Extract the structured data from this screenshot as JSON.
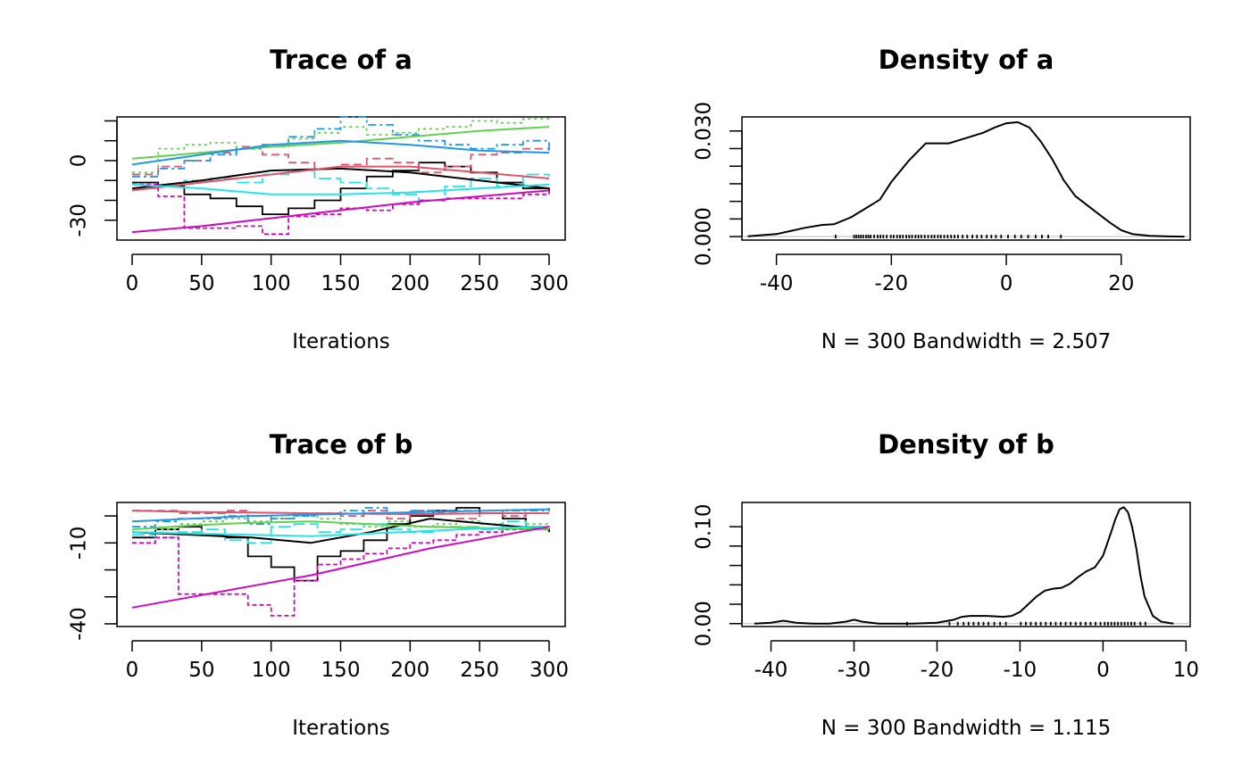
{
  "chart_data": [
    {
      "type": "line",
      "title": "Trace of a",
      "xlabel": "Iterations",
      "ylabel": "",
      "xlim": [
        0,
        300
      ],
      "ylim": [
        -40,
        22
      ],
      "x_ticks": [
        "0",
        "50",
        "100",
        "150",
        "200",
        "250",
        "300"
      ],
      "y_ticks": [
        "-30",
        "0"
      ],
      "y_tick_values": [
        -30,
        0
      ],
      "y_minor_ticks": [
        -30,
        -20,
        -10,
        0,
        10,
        20
      ],
      "series_colors": [
        "#000000",
        "#DF536B",
        "#61D04F",
        "#2297E6",
        "#28E2E5",
        "#CD0BBC"
      ],
      "series": [
        {
          "values": [
            -11,
            -13,
            -17,
            -19,
            -23,
            -27,
            -24,
            -20,
            -14,
            -8,
            -5,
            -1,
            -3,
            -6,
            -11,
            -14,
            -16
          ]
        },
        {
          "values": [
            -7,
            -3,
            0,
            4,
            7,
            3,
            -1,
            -4,
            -2,
            1,
            -1,
            -6,
            -3,
            3,
            4,
            6,
            5
          ]
        },
        {
          "values": [
            -6,
            6,
            8,
            9,
            6,
            7,
            11,
            14,
            17,
            13,
            14,
            16,
            17,
            20,
            19,
            21,
            20
          ]
        },
        {
          "values": [
            -8,
            -4,
            0,
            3,
            6,
            8,
            12,
            16,
            22,
            18,
            13,
            10,
            8,
            6,
            8,
            10,
            5
          ]
        },
        {
          "values": [
            -14,
            -12,
            -10,
            -9,
            -11,
            -7,
            -5,
            -9,
            -11,
            -14,
            -17,
            -20,
            -13,
            -9,
            -13,
            -7,
            -8
          ]
        },
        {
          "values": [
            -12,
            -18,
            -34,
            -34,
            -33,
            -37,
            -28,
            -27,
            -24,
            -25,
            -22,
            -20,
            -19,
            -19,
            -19,
            -17,
            -15
          ]
        }
      ],
      "trend_lines": [
        {
          "values": [
            -14,
            -10,
            -5,
            -4,
            -6,
            -10,
            -14
          ]
        },
        {
          "values": [
            -15,
            -11,
            -7,
            -3,
            -3,
            -6,
            -9
          ]
        },
        {
          "values": [
            1,
            4,
            7,
            9,
            12,
            15,
            17
          ]
        },
        {
          "values": [
            -2,
            3,
            8,
            10,
            8,
            5,
            4
          ]
        },
        {
          "values": [
            -12,
            -14,
            -17,
            -17,
            -16,
            -14,
            -12
          ]
        },
        {
          "values": [
            -36,
            -33,
            -29,
            -25,
            -21,
            -18,
            -15
          ]
        }
      ]
    },
    {
      "type": "line",
      "title": "Density of a",
      "xlabel": "N = 300   Bandwidth = 2.507",
      "ylabel": "",
      "xlim": [
        -46,
        32
      ],
      "ylim": [
        -0.001,
        0.034
      ],
      "x_ticks": [
        "-40",
        "-20",
        "0",
        "20"
      ],
      "x_tick_values": [
        -40,
        -20,
        0,
        20
      ],
      "y_ticks": [
        "0.000",
        "0.030"
      ],
      "y_tick_values": [
        0,
        0.03
      ],
      "y_minor_ticks": [
        0,
        0.005,
        0.01,
        0.015,
        0.02,
        0.025,
        0.03
      ],
      "x": [
        -45,
        -40,
        -35,
        -32,
        -30,
        -27,
        -25,
        -22,
        -20,
        -17,
        -14,
        -12,
        -10,
        -7,
        -4,
        -2,
        0,
        2,
        4,
        6,
        8,
        10,
        12,
        14,
        16,
        18,
        20,
        22,
        25,
        28,
        31
      ],
      "y": [
        0.0001,
        0.0007,
        0.0025,
        0.0033,
        0.0035,
        0.0055,
        0.0075,
        0.0105,
        0.0155,
        0.0215,
        0.0265,
        0.0265,
        0.0265,
        0.028,
        0.0295,
        0.031,
        0.0322,
        0.0325,
        0.031,
        0.027,
        0.022,
        0.016,
        0.0115,
        0.009,
        0.0065,
        0.004,
        0.0018,
        0.0007,
        0.0002,
        5e-05,
        0
      ],
      "rug": [
        -29.7,
        -26.5,
        -26.1,
        -25.7,
        -25.3,
        -24.9,
        -24.4,
        -24,
        -23.6,
        -23,
        -22.4,
        -21.9,
        -21.4,
        -20.8,
        -20.1,
        -19.6,
        -19,
        -18.5,
        -18,
        -17.4,
        -16.9,
        -16.4,
        -15.8,
        -15.3,
        -14.8,
        -14.2,
        -13.6,
        -13,
        -12.5,
        -11.9,
        -11.4,
        -10.8,
        -10.2,
        -9.6,
        -9,
        -8.4,
        -7.6,
        -6.8,
        -5.9,
        -5.1,
        -4.3,
        -3.4,
        -2.6,
        -1.8,
        -0.9,
        0.3,
        1.5,
        2.6,
        3.8,
        5.1,
        6.2,
        7.3,
        9.5
      ]
    },
    {
      "type": "line",
      "title": "Trace of b",
      "xlabel": "Iterations",
      "ylabel": "",
      "xlim": [
        0,
        300
      ],
      "ylim": [
        -41,
        5
      ],
      "x_ticks": [
        "0",
        "50",
        "100",
        "150",
        "200",
        "250",
        "300"
      ],
      "y_ticks": [
        "-40",
        "-10"
      ],
      "y_tick_values": [
        -40,
        -10
      ],
      "y_minor_ticks": [
        -40,
        -30,
        -20,
        -10,
        0
      ],
      "series_colors": [
        "#000000",
        "#DF536B",
        "#61D04F",
        "#2297E6",
        "#28E2E5",
        "#CD0BBC"
      ],
      "series": [
        {
          "values": [
            -8,
            -5,
            -4,
            -7,
            -8,
            -15,
            -19,
            -24,
            -15,
            -13,
            -9,
            -3,
            0,
            2,
            3,
            1,
            -1,
            -5,
            -6
          ]
        },
        {
          "values": [
            2,
            2,
            1,
            1,
            2,
            0,
            -1,
            1,
            1,
            0,
            2,
            -1,
            2,
            1,
            -1,
            1,
            0,
            1,
            1
          ]
        },
        {
          "values": [
            -6,
            -5,
            -3,
            -2,
            -1,
            -2,
            -1,
            0,
            -1,
            -3,
            -4,
            -2,
            -4,
            -3,
            -2,
            -3,
            -5,
            -3,
            -2
          ]
        },
        {
          "values": [
            -4,
            -2,
            -1,
            -1,
            0,
            -3,
            -1,
            0,
            1,
            2,
            3,
            1,
            2,
            2,
            2,
            1,
            2,
            2,
            3
          ]
        },
        {
          "values": [
            -7,
            -8,
            -6,
            -5,
            -9,
            -10,
            -4,
            -3,
            -6,
            -5,
            -3,
            -5,
            -6,
            -4,
            -4,
            -5,
            -2,
            -4,
            -3
          ]
        },
        {
          "values": [
            -10,
            -8,
            -29,
            -29,
            -29,
            -33,
            -37,
            -24,
            -18,
            -16,
            -14,
            -12,
            -10,
            -9,
            -7,
            -6,
            -5,
            -4,
            -3
          ]
        }
      ],
      "trend_lines": [
        {
          "values": [
            -6,
            -7,
            -8,
            -10,
            -6,
            -1,
            -3,
            -5
          ]
        },
        {
          "values": [
            2,
            1.5,
            1.3,
            1,
            0.8,
            0.7,
            1,
            1
          ]
        },
        {
          "values": [
            -5,
            -3.5,
            -2.5,
            -2,
            -3,
            -4,
            -4.5,
            -5
          ]
        },
        {
          "values": [
            -2,
            -1,
            0,
            0.5,
            1,
            1.5,
            2,
            2.5
          ]
        },
        {
          "values": [
            -6,
            -6.5,
            -7,
            -7.5,
            -6.5,
            -5.5,
            -4.5,
            -4
          ]
        },
        {
          "values": [
            -34,
            -30,
            -26,
            -22,
            -17,
            -12,
            -8,
            -4
          ]
        }
      ]
    },
    {
      "type": "line",
      "title": "Density of b",
      "xlabel": "N = 300   Bandwidth = 1.115",
      "ylabel": "",
      "xlim": [
        -43.5,
        10.5
      ],
      "ylim": [
        -0.003,
        0.125
      ],
      "x_ticks": [
        "-40",
        "-30",
        "-20",
        "-10",
        "0",
        "10"
      ],
      "x_tick_values": [
        -40,
        -30,
        -20,
        -10,
        0,
        10
      ],
      "y_ticks": [
        "0.00",
        "0.10"
      ],
      "y_tick_values": [
        0,
        0.1
      ],
      "y_minor_ticks": [
        0,
        0.02,
        0.04,
        0.06,
        0.08,
        0.1
      ],
      "x": [
        -42,
        -40,
        -38.5,
        -37,
        -35,
        -33,
        -31,
        -30,
        -29,
        -27,
        -25,
        -23,
        -20,
        -18,
        -17,
        -16,
        -14,
        -12,
        -11,
        -10,
        -9,
        -8,
        -7,
        -6,
        -5,
        -4,
        -3,
        -2,
        -1,
        0,
        1,
        1.5,
        2,
        2.5,
        3,
        3.5,
        4,
        4.5,
        5,
        6,
        7,
        8.5
      ],
      "y": [
        0,
        0.001,
        0.003,
        0.001,
        0,
        0,
        0.002,
        0.004,
        0.002,
        0,
        0,
        0,
        0.001,
        0.004,
        0.007,
        0.008,
        0.008,
        0.007,
        0.008,
        0.012,
        0.02,
        0.028,
        0.034,
        0.036,
        0.037,
        0.041,
        0.048,
        0.054,
        0.058,
        0.07,
        0.095,
        0.108,
        0.118,
        0.12,
        0.115,
        0.1,
        0.078,
        0.05,
        0.028,
        0.008,
        0.002,
        0
      ],
      "rug": [
        -23.6,
        -18.5,
        -17.5,
        -16.8,
        -16.2,
        -15.6,
        -15,
        -14.4,
        -13.8,
        -13.1,
        -12.4,
        -11.7,
        -9.9,
        -9.3,
        -8.7,
        -8.1,
        -7.5,
        -6.9,
        -6.3,
        -5.7,
        -5.1,
        -4.5,
        -3.9,
        -3.3,
        -2.7,
        -2.1,
        -1.5,
        -0.9,
        -0.3,
        0.2,
        0.6,
        1,
        1.4,
        1.8,
        2.2,
        2.6,
        3,
        3.4,
        3.8,
        4.5,
        5.1
      ]
    }
  ]
}
